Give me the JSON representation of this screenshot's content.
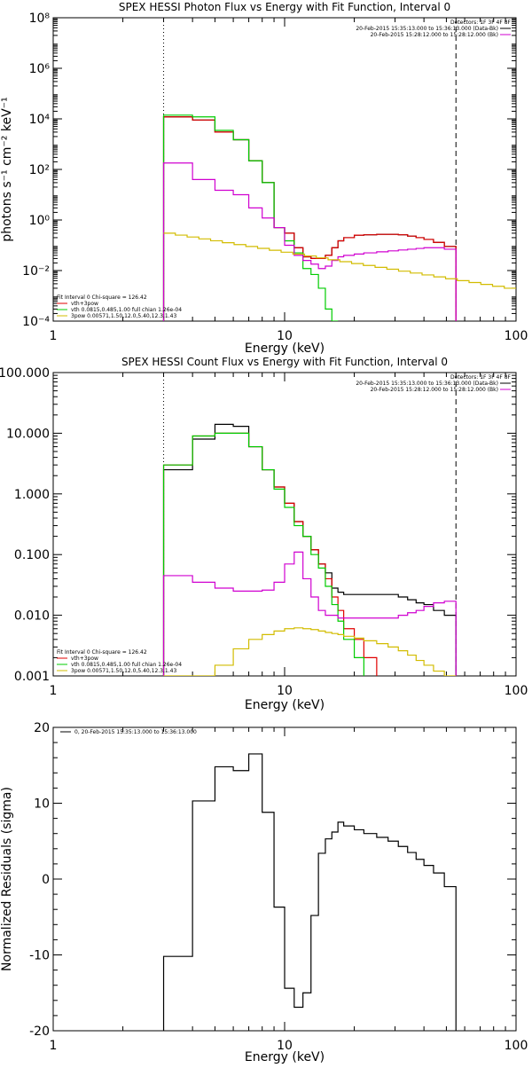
{
  "colors": {
    "black": "#000000",
    "red": "#e00000",
    "green": "#00cc00",
    "magenta": "#d000d0",
    "yellow": "#d2bc00"
  },
  "chart_data": [
    {
      "type": "line",
      "title": "SPEX HESSI Photon Flux vs Energy with Fit Function, Interval 0",
      "xlabel": "Energy (keV)",
      "ylabel": "photons s⁻¹ cm⁻² keV⁻¹",
      "xscale": "log",
      "yscale": "log",
      "xlim": [
        1,
        100
      ],
      "ylim": [
        0.0001,
        100000000
      ],
      "xticks": [
        1,
        10,
        100
      ],
      "xtick_labels": [
        "1",
        "10",
        "100"
      ],
      "yticks": [
        0.0001,
        0.01,
        1,
        100,
        10000,
        1000000,
        100000000
      ],
      "ytick_labels": [
        "10⁻⁴",
        "10⁻²",
        "10⁰",
        "10²",
        "10⁴",
        "10⁶",
        "10⁸"
      ],
      "vlines": [
        {
          "x": 3,
          "style": "dotted"
        },
        {
          "x": 55,
          "style": "dashed"
        }
      ],
      "legend_top": [
        "Detectors: 1F 3F 4F 8F",
        "20-Feb-2015 15:35:13.000 to 15:36:13.000 (Data-Bk)",
        "20-Feb-2015 15:28:12.000 to 15:28:12.000 (Bk)"
      ],
      "legend_top_colors": [
        "",
        "black",
        "magenta"
      ],
      "legend_bottom": [
        "Fit Interval 0   Chi-square = 126.42",
        "vth+3pow",
        "vth 0.0815,0.485,1.00  full chian 1.26e-04",
        "3pow 0.00571,1.50,12.0,5.40,12.3,1.43"
      ],
      "legend_bottom_colors": [
        "",
        "red",
        "green",
        "yellow"
      ],
      "edges": [
        3,
        4,
        5,
        6,
        7,
        8,
        9,
        10,
        11,
        12,
        13,
        14,
        15,
        16,
        17,
        18,
        20,
        22,
        25,
        28,
        31,
        34,
        37,
        40,
        44,
        49,
        55
      ],
      "series": [
        {
          "color": "black",
          "values": [
            12000,
            9000,
            3000,
            1500,
            220,
            30,
            0.5,
            0.3,
            0.08,
            0.035,
            0.03,
            0.03,
            0.04,
            0.08,
            0.15,
            0.2,
            0.25,
            0.26,
            0.27,
            0.27,
            0.26,
            0.23,
            0.2,
            0.17,
            0.13,
            0.09
          ]
        },
        {
          "color": "red",
          "values": [
            12000,
            9000,
            3000,
            1500,
            220,
            30,
            0.5,
            0.3,
            0.08,
            0.035,
            0.03,
            0.03,
            0.04,
            0.08,
            0.15,
            0.2,
            0.25,
            0.26,
            0.27,
            0.27,
            0.26,
            0.23,
            0.2,
            0.17,
            0.13,
            0.09
          ]
        },
        {
          "color": "green",
          "values": [
            14000,
            12000,
            3500,
            1500,
            220,
            30,
            0.5,
            0.15,
            0.05,
            0.012,
            0.007,
            0.002,
            0.0003,
            0.0001
          ]
        },
        {
          "color": "magenta",
          "values": [
            180,
            40,
            15,
            10,
            3,
            1.2,
            0.5,
            0.1,
            0.04,
            0.025,
            0.018,
            0.012,
            0.015,
            0.025,
            0.035,
            0.04,
            0.045,
            0.05,
            0.055,
            0.06,
            0.065,
            0.07,
            0.075,
            0.08,
            0.08,
            0.07
          ]
        }
      ],
      "model_line": {
        "color": "yellow",
        "x0": 3,
        "y0": 0.3,
        "x1": 100,
        "y1": 0.002
      }
    },
    {
      "type": "line",
      "title": "SPEX HESSI Count Flux vs Energy with Fit Function, Interval 0",
      "xlabel": "Energy (keV)",
      "xscale": "log",
      "yscale": "log",
      "xlim": [
        1,
        100
      ],
      "ylim": [
        0.001,
        100
      ],
      "xticks": [
        1,
        10,
        100
      ],
      "xtick_labels": [
        "1",
        "10",
        "100"
      ],
      "yticks": [
        0.001,
        0.01,
        0.1,
        1,
        10,
        100
      ],
      "ytick_labels": [
        "0.001",
        "0.010",
        "0.100",
        "1.000",
        "10.000",
        "100.000"
      ],
      "vlines": [
        {
          "x": 3,
          "style": "dotted"
        },
        {
          "x": 55,
          "style": "dashed"
        }
      ],
      "legend_top": [
        "Detectors: 1F 3F 4F 8F",
        "20-Feb-2015 15:35:13.000 to 15:36:13.000 (Data-Bk)",
        "20-Feb-2015 15:28:12.000 to 15:28:12.000 (Bk)"
      ],
      "legend_top_colors": [
        "",
        "black",
        "magenta"
      ],
      "legend_bottom": [
        "Fit Interval 0   Chi-square = 126.42",
        "vth+3pow",
        "vth 0.0815,0.485,1.00  full chian 1.26e-04",
        "3pow 0.00571,1.50,12.0,5.40,12.3,1.43"
      ],
      "legend_bottom_colors": [
        "",
        "red",
        "green",
        "yellow"
      ],
      "edges": [
        3,
        4,
        5,
        6,
        7,
        8,
        9,
        10,
        11,
        12,
        13,
        14,
        15,
        16,
        17,
        18,
        20,
        22,
        25,
        28,
        31,
        34,
        37,
        40,
        44,
        49,
        55
      ],
      "series": [
        {
          "color": "black",
          "values": [
            2.5,
            8,
            14,
            13,
            6,
            2.5,
            1.3,
            0.7,
            0.35,
            0.2,
            0.12,
            0.07,
            0.05,
            0.028,
            0.024,
            0.022,
            0.022,
            0.022,
            0.022,
            0.022,
            0.02,
            0.018,
            0.016,
            0.015,
            0.012,
            0.01
          ]
        },
        {
          "color": "red",
          "values": [
            3,
            9,
            10,
            10,
            6,
            2.5,
            1.3,
            0.7,
            0.35,
            0.2,
            0.12,
            0.07,
            0.04,
            0.02,
            0.012,
            0.006,
            0.004,
            0.002
          ]
        },
        {
          "color": "green",
          "values": [
            3,
            9,
            10,
            10,
            6,
            2.5,
            1.2,
            0.6,
            0.3,
            0.2,
            0.1,
            0.06,
            0.03,
            0.015,
            0.008,
            0.004,
            0.002
          ]
        },
        {
          "color": "magenta",
          "values": [
            0.045,
            0.035,
            0.028,
            0.025,
            0.025,
            0.026,
            0.035,
            0.07,
            0.11,
            0.04,
            0.02,
            0.012,
            0.01,
            0.01,
            0.009,
            0.009,
            0.009,
            0.009,
            0.009,
            0.009,
            0.01,
            0.011,
            0.012,
            0.014,
            0.016,
            0.017
          ]
        },
        {
          "color": "yellow",
          "values": [
            0.001,
            0.001,
            0.0015,
            0.0028,
            0.004,
            0.0048,
            0.0055,
            0.006,
            0.0062,
            0.006,
            0.0058,
            0.0055,
            0.0052,
            0.005,
            0.0048,
            0.0045,
            0.0042,
            0.0038,
            0.0034,
            0.003,
            0.0026,
            0.0022,
            0.0018,
            0.0015,
            0.0012,
            0.001
          ]
        }
      ]
    },
    {
      "type": "line",
      "xlabel": "Energy (keV)",
      "ylabel": "Normalized Residuals (sigma)",
      "xscale": "log",
      "yscale": "linear",
      "xlim": [
        1,
        100
      ],
      "ylim": [
        -20,
        20
      ],
      "xticks": [
        1,
        10,
        100
      ],
      "xtick_labels": [
        "1",
        "10",
        "100"
      ],
      "yticks": [
        -20,
        -10,
        0,
        10,
        20
      ],
      "ytick_labels": [
        "-20",
        "-10",
        "0",
        "10",
        "20"
      ],
      "legend_top": [
        "0, 20-Feb-2015 15:35:13.000 to 15:36:13.000"
      ],
      "legend_top_colors": [
        "black"
      ],
      "edges": [
        3,
        4,
        5,
        6,
        7,
        8,
        9,
        10,
        11,
        12,
        13,
        14,
        15,
        16,
        17,
        18,
        20,
        22,
        25,
        28,
        31,
        34,
        37,
        40,
        44,
        49,
        55
      ],
      "series": [
        {
          "color": "black",
          "values": [
            -10.2,
            10.3,
            14.8,
            14.3,
            16.5,
            8.8,
            -3.7,
            -14.4,
            -16.9,
            -15,
            -4.8,
            3.4,
            5.3,
            6.2,
            7.5,
            7.0,
            6.5,
            6.0,
            5.5,
            5.0,
            4.3,
            3.5,
            2.6,
            1.8,
            0.8,
            -1.0
          ]
        }
      ]
    }
  ]
}
